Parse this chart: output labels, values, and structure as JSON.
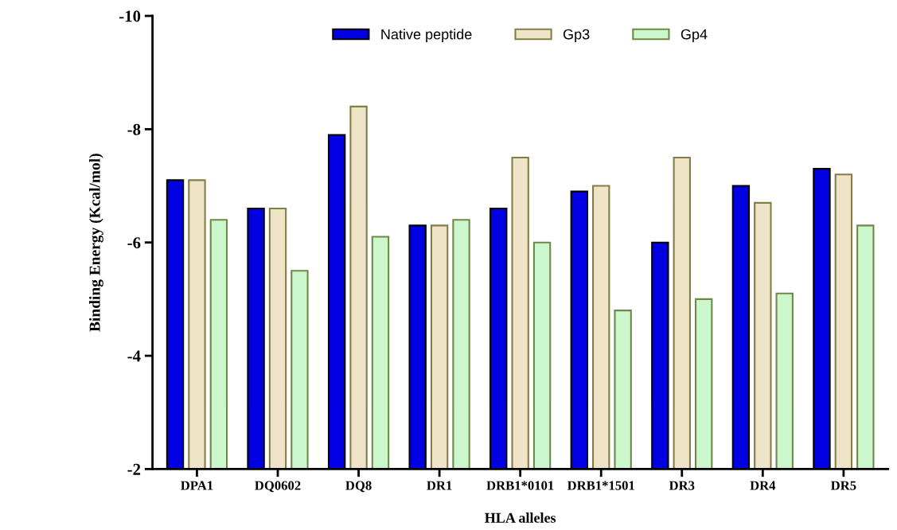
{
  "chart_data": {
    "type": "bar",
    "xlabel": "HLA alleles",
    "ylabel": "Binding Energy (Kcal/mol)",
    "categories": [
      "DPA1",
      "DQ0602",
      "DQ8",
      "DR1",
      "DRB1*0101",
      "DRB1*1501",
      "DR3",
      "DR4",
      "DR5"
    ],
    "series": [
      {
        "name": "Native peptide",
        "color": "#0000e0",
        "values": [
          -7.1,
          -6.6,
          -7.9,
          -6.3,
          -6.6,
          -6.9,
          -6.0,
          -7.0,
          -7.3
        ]
      },
      {
        "name": "Gp3",
        "color": "#efe3c8",
        "values": [
          -7.1,
          -6.6,
          -8.4,
          -6.3,
          -7.5,
          -7.0,
          -7.5,
          -6.7,
          -7.2
        ]
      },
      {
        "name": "Gp4",
        "color": "#ccf7cc",
        "values": [
          -6.4,
          -5.5,
          -6.1,
          -6.4,
          -6.0,
          -4.8,
          -5.0,
          -5.1,
          -6.3
        ]
      }
    ],
    "ylim": [
      -2,
      -10
    ],
    "yticks": [
      -2,
      -4,
      -6,
      -8,
      -10
    ],
    "grid": false,
    "legend": "top"
  }
}
